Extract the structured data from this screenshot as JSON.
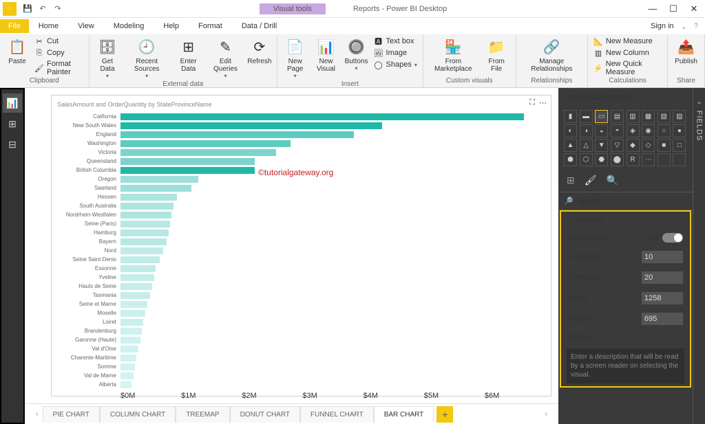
{
  "window": {
    "title": "Reports - Power BI Desktop",
    "visual_tools": "Visual tools",
    "sign_in": "Sign in"
  },
  "menu": {
    "file": "File",
    "tabs": [
      "Home",
      "View",
      "Modeling",
      "Help",
      "Format",
      "Data / Drill"
    ],
    "active": 0
  },
  "ribbon": {
    "clipboard": {
      "label": "Clipboard",
      "paste": "Paste",
      "cut": "Cut",
      "copy": "Copy",
      "format_painter": "Format Painter"
    },
    "external": {
      "label": "External data",
      "get_data": "Get\nData",
      "recent": "Recent\nSources",
      "enter": "Enter\nData",
      "edit": "Edit\nQueries",
      "refresh": "Refresh"
    },
    "insert": {
      "label": "Insert",
      "new_page": "New\nPage",
      "new_visual": "New\nVisual",
      "buttons": "Buttons",
      "text_box": "Text box",
      "image": "Image",
      "shapes": "Shapes"
    },
    "custom": {
      "label": "Custom visuals",
      "marketplace": "From\nMarketplace",
      "file": "From\nFile"
    },
    "rel": {
      "label": "Relationships",
      "manage": "Manage\nRelationships"
    },
    "calc": {
      "label": "Calculations",
      "measure": "New Measure",
      "column": "New Column",
      "quick": "New Quick Measure"
    },
    "share": {
      "label": "Share",
      "publish": "Publish"
    }
  },
  "chart": {
    "title": "SalesAmount and OrderQuantity by StateProvinceName",
    "watermark": "©tutorialgateway.org",
    "max_value": 6.0,
    "categories": [
      "California",
      "New South Wales",
      "England",
      "Washington",
      "Victoria",
      "Queensland",
      "British Columbia",
      "Oregon",
      "Saarland",
      "Hessen",
      "South Australia",
      "Nordrhein-Westfalen",
      "Seine (Paris)",
      "Hamburg",
      "Bayern",
      "Nord",
      "Seine Saint Denis",
      "Essonne",
      "Yveline",
      "Hauts de Seine",
      "Tasmania",
      "Seine et Marne",
      "Moselle",
      "Loiret",
      "Brandenburg",
      "Garonne (Haute)",
      "Val d'Oise",
      "Charente-Maritime",
      "Somme",
      "Val de Marne",
      "Alberta"
    ],
    "values": [
      5.7,
      3.7,
      3.3,
      2.4,
      2.2,
      1.9,
      1.9,
      1.1,
      1.0,
      0.8,
      0.75,
      0.72,
      0.7,
      0.68,
      0.65,
      0.6,
      0.55,
      0.5,
      0.48,
      0.45,
      0.42,
      0.38,
      0.35,
      0.32,
      0.3,
      0.28,
      0.25,
      0.22,
      0.2,
      0.18,
      0.16
    ],
    "colors": [
      "#1fb8a9",
      "#1fb8a9",
      "#5ecbc1",
      "#5ecbc1",
      "#7ed4cc",
      "#7ed4cc",
      "#1fb8a9",
      "#9edfd9",
      "#9edfd9",
      "#aee5e0",
      "#aee5e0",
      "#aee5e0",
      "#b8e8e4",
      "#b8e8e4",
      "#b8e8e4",
      "#c0ece8",
      "#c0ece8",
      "#c0ece8",
      "#c5eeea",
      "#c5eeea",
      "#c5eeea",
      "#caf0ed",
      "#caf0ed",
      "#caf0ed",
      "#cef2ef",
      "#cef2ef",
      "#cef2ef",
      "#d2f3f0",
      "#d2f3f0",
      "#d2f3f0",
      "#d5f4f2"
    ],
    "x_ticks": [
      "$0M",
      "$1M",
      "$2M",
      "$3M",
      "$4M",
      "$5M",
      "$6M"
    ]
  },
  "pages": {
    "tabs": [
      "PIE CHART",
      "COLUMN CHART",
      "TREEMAP",
      "DONUT CHART",
      "FUNNEL CHART",
      "BAR CHART"
    ],
    "active": 5
  },
  "viz_panel": {
    "title": "VISUALIZATIONS",
    "search": "Search",
    "section": "General",
    "responsive_label": "Responsive",
    "responsive_value": "On",
    "props": [
      {
        "label": "X Position",
        "value": "10"
      },
      {
        "label": "Y Position",
        "value": "20"
      },
      {
        "label": "Width",
        "value": "1258"
      },
      {
        "label": "Height",
        "value": "695"
      }
    ],
    "alt_label": "Alt Text",
    "alt_placeholder": "Enter a description that will be read by a screen reader on selecting the visual."
  },
  "fields_label": "FIELDS"
}
